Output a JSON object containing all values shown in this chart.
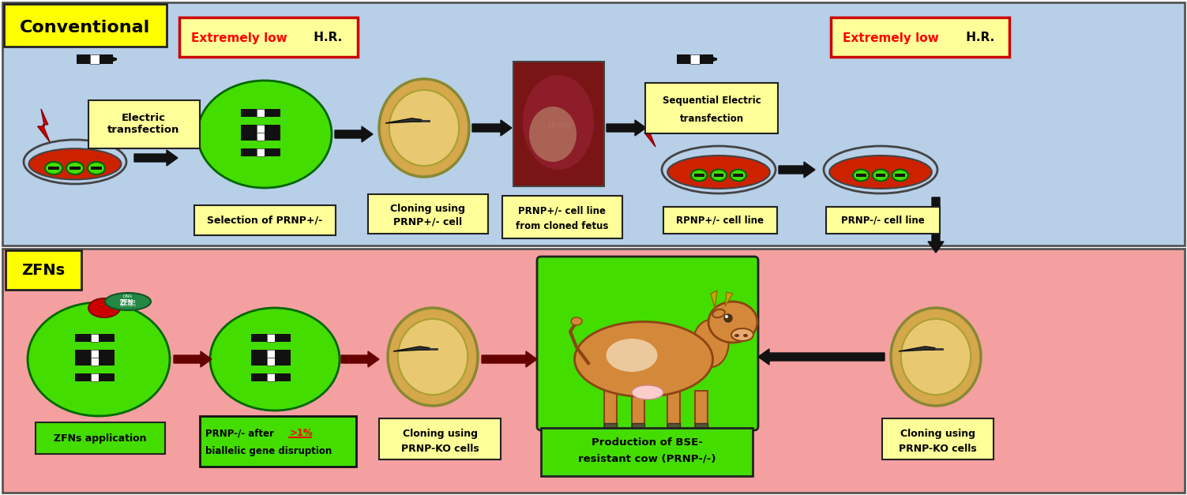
{
  "bg_top": "#b8cfe8",
  "bg_bottom": "#f4a0a0",
  "yellow_label_bg": "#ffff00",
  "yellow_box_bg": "#ffff99",
  "green_bright": "#44dd00",
  "red_dish": "#cc2200",
  "arrow_black": "#111111",
  "dark_red_arrow": "#660000",
  "title_conventional": "Conventional",
  "title_zfns": "ZFNs",
  "label_electric": "Electric\ntransfection",
  "label_selection": "Selection of PRNP+/-",
  "label_cloning1_l1": "Cloning using",
  "label_cloning1_l2": "PRNP+/- cell",
  "label_prnp_cell_l1": "PRNP+/- cell line",
  "label_prnp_cell_l2": "from cloned fetus",
  "label_seq_el_l1": "Sequential Electric",
  "label_seq_el_l2": "transfection",
  "label_rpnp": "RPNP+/- cell line",
  "label_prnp_minus": "PRNP-/- cell line",
  "label_low_hr_red": "Extremely low",
  "label_low_hr_black": " H.R.",
  "label_zfns_app": "ZFNs application",
  "label_biallelic_l1": "PRNP-/- after ",
  "label_biallelic_red": ">1%",
  "label_biallelic_l2": "biallelic gene disruption",
  "label_cloning_ko_l1": "Cloning using",
  "label_cloning_ko_l2": "PRNP-KO cells",
  "label_bse_l1": "Production of BSE-",
  "label_bse_l2": "resistant cow (PRNP-/-)"
}
